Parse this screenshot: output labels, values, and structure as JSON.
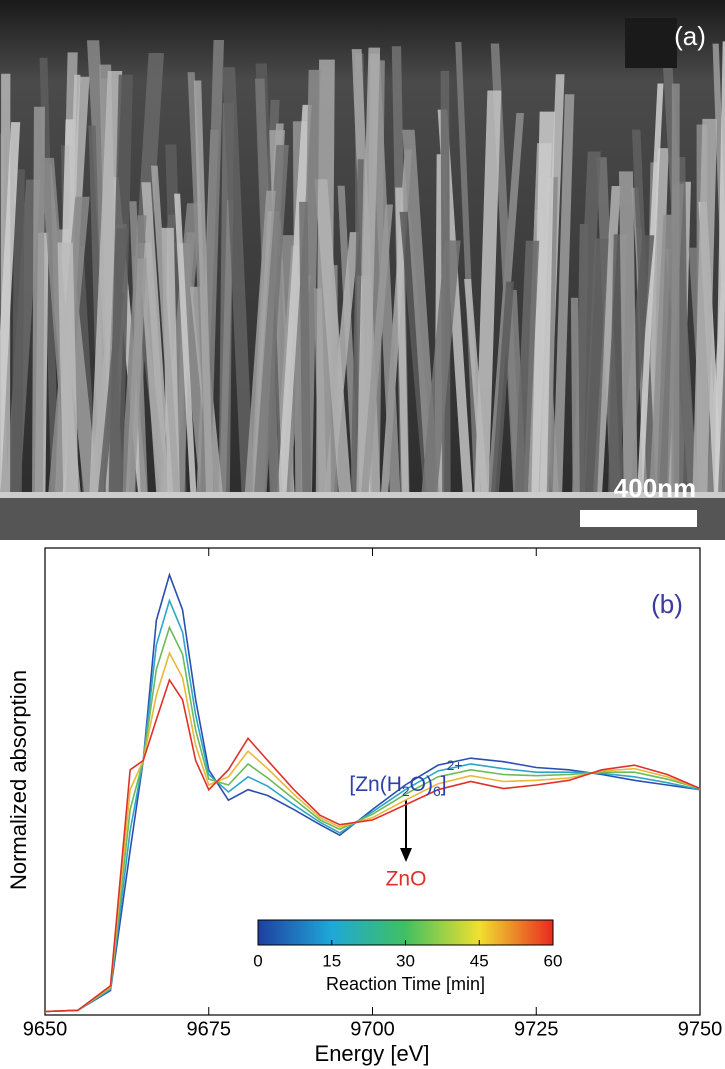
{
  "panel_a": {
    "label": "(a)",
    "scale_bar": "400nm"
  },
  "chart_data": {
    "type": "line",
    "label": "(b)",
    "xlabel": "Energy [eV]",
    "ylabel": "Normalized absorption",
    "x": [
      9650,
      9655,
      9660,
      9663,
      9665,
      9667,
      9669,
      9671,
      9673,
      9675,
      9678,
      9681,
      9684,
      9688,
      9692,
      9695,
      9700,
      9705,
      9710,
      9715,
      9720,
      9725,
      9730,
      9735,
      9740,
      9745,
      9750
    ],
    "xlim": [
      9650,
      9750
    ],
    "xticks": [
      9650,
      9675,
      9700,
      9725,
      9750
    ],
    "ylim": [
      0,
      4
    ],
    "series": [
      {
        "color": "#2b4fb0",
        "values": [
          0.03,
          0.04,
          0.21,
          1.41,
          2.18,
          3.38,
          3.77,
          3.47,
          2.7,
          2.1,
          1.84,
          1.93,
          1.88,
          1.76,
          1.63,
          1.54,
          1.76,
          1.97,
          2.14,
          2.2,
          2.17,
          2.12,
          2.1,
          2.06,
          2.01,
          1.97,
          1.93
        ]
      },
      {
        "color": "#2ea6c8",
        "values": [
          0.03,
          0.04,
          0.22,
          1.58,
          2.18,
          3.17,
          3.55,
          3.28,
          2.57,
          2.06,
          1.91,
          2.04,
          1.96,
          1.8,
          1.65,
          1.56,
          1.74,
          1.93,
          2.09,
          2.15,
          2.11,
          2.08,
          2.08,
          2.07,
          2.04,
          1.99,
          1.93
        ]
      },
      {
        "color": "#6cba58",
        "values": [
          0.03,
          0.04,
          0.23,
          1.76,
          2.18,
          2.96,
          3.32,
          3.09,
          2.44,
          2.02,
          1.97,
          2.15,
          2.03,
          1.85,
          1.67,
          1.59,
          1.72,
          1.89,
          2.04,
          2.1,
          2.06,
          2.05,
          2.06,
          2.08,
          2.08,
          2.02,
          1.94
        ]
      },
      {
        "color": "#e8b838",
        "values": [
          0.03,
          0.04,
          0.24,
          1.93,
          2.18,
          2.74,
          3.1,
          2.89,
          2.31,
          1.97,
          2.04,
          2.26,
          2.11,
          1.89,
          1.69,
          1.61,
          1.69,
          1.84,
          1.98,
          2.05,
          2.0,
          2.01,
          2.03,
          2.09,
          2.11,
          2.04,
          1.94
        ]
      },
      {
        "color": "#e0302a",
        "values": [
          0.03,
          0.04,
          0.25,
          2.1,
          2.18,
          2.53,
          2.87,
          2.7,
          2.18,
          1.93,
          2.1,
          2.37,
          2.18,
          1.93,
          1.71,
          1.63,
          1.67,
          1.8,
          1.93,
          2.0,
          1.94,
          1.97,
          2.01,
          2.1,
          2.14,
          2.06,
          1.94
        ]
      }
    ],
    "annotation_start": {
      "parts": [
        "[Zn(H",
        "2",
        "O)",
        "6",
        "]",
        "2+"
      ],
      "color": "#2b3fa8"
    },
    "annotation_end": {
      "text": "ZnO",
      "color": "#e0302a"
    },
    "colorbar": {
      "label": "Reaction Time [min]",
      "lim": [
        0,
        60
      ],
      "ticks": [
        0,
        15,
        30,
        45,
        60
      ],
      "colors": [
        "#1f3fa0",
        "#1fa8d8",
        "#40c060",
        "#f0e030",
        "#e82a20"
      ]
    }
  }
}
